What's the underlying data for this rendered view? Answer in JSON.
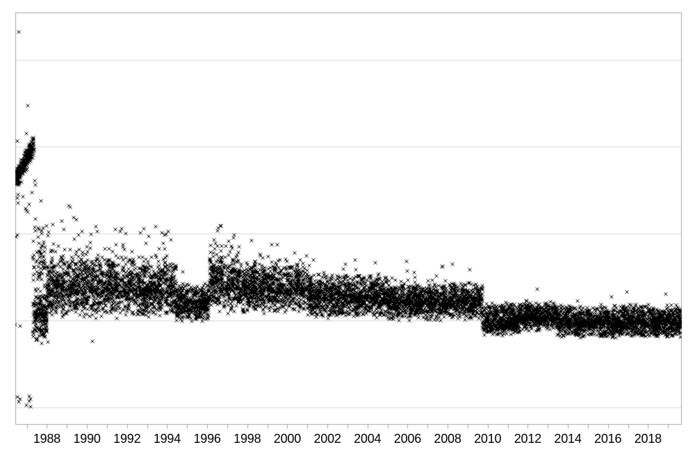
{
  "frame": {
    "background": "#ffffff",
    "border_color": "#a6a6a6",
    "gridline_color": "#d9d9d9",
    "tick_color": "#a6a6a6",
    "label_color": "#000000"
  },
  "chart_data": {
    "type": "scatter",
    "title": "",
    "marker": "x",
    "marker_color": "#000000",
    "marker_size_px": 5,
    "legend": "none",
    "x_axis": {
      "range": [
        1986.44,
        2019.67
      ],
      "tick_years": [
        1987,
        1988,
        1989,
        1990,
        1991,
        1992,
        1993,
        1994,
        1995,
        1996,
        1997,
        1998,
        1999,
        2000,
        2001,
        2002,
        2003,
        2004,
        2005,
        2006,
        2007,
        2008,
        2009,
        2010,
        2011,
        2012,
        2013,
        2014,
        2015,
        2016,
        2017,
        2018,
        2019
      ],
      "label_years": [
        1988,
        1990,
        1992,
        1994,
        1996,
        1998,
        2000,
        2002,
        2004,
        2006,
        2008,
        2010,
        2012,
        2014,
        2016,
        2018
      ],
      "labels": [
        "1988",
        "1990",
        "1992",
        "1994",
        "1996",
        "1998",
        "2000",
        "2002",
        "2004",
        "2006",
        "2008",
        "2010",
        "2012",
        "2014",
        "2016",
        "2018"
      ]
    },
    "y_axis": {
      "range": [
        -0.196,
        4.54
      ],
      "gridlines": [
        0,
        1,
        2,
        3,
        4
      ],
      "labels_visible": false,
      "note": "no tick labels shown; values expressed in gridline units (0 = lowest gridline)"
    },
    "band_segments": [
      {
        "name": "left-rising-cluster",
        "from": 1986.45,
        "to": 1987.35,
        "v_start": 2.63,
        "v_end": 3.01,
        "jitter": 0.13,
        "n": 260
      },
      {
        "name": "left-sparse-strays",
        "from": 1986.45,
        "to": 1987.45,
        "v_min": 2.25,
        "v_max": 2.62,
        "n": 12
      },
      {
        "name": "1987-dense-low-blob",
        "from": 1987.3,
        "to": 1988.0,
        "mode": 1.05,
        "up": 0.26,
        "dn": 0.34,
        "n": 200,
        "tail_p": 0.01,
        "tail_max": 0.3
      },
      {
        "name": "1987-vertical-column",
        "from": 1987.3,
        "to": 1988.1,
        "mode": 1.7,
        "up": 0.55,
        "dn": 0.45,
        "n": 75,
        "tail_p": 0.02,
        "tail_max": 0.3
      },
      {
        "name": "band-1988-1994",
        "from": 1988.0,
        "to": 1994.45,
        "mode": 1.37,
        "up": 0.42,
        "dn": 0.36,
        "n": 1680,
        "tail_p": 0.02,
        "tail_max": 0.28
      },
      {
        "name": "notch-1994-1996",
        "from": 1994.45,
        "to": 1996.1,
        "mode": 1.19,
        "up": 0.25,
        "dn": 0.21,
        "n": 430,
        "tail_p": 0.006,
        "tail_max": 0.2
      },
      {
        "name": "peak-1996-1997",
        "from": 1996.1,
        "to": 1997.6,
        "mode": 1.45,
        "up": 0.4,
        "dn": 0.39,
        "n": 390,
        "tail_p": 0.02,
        "tail_max": 0.3
      },
      {
        "name": "band-1997-2001",
        "from": 1997.6,
        "to": 2001.0,
        "mode": 1.37,
        "up": 0.34,
        "dn": 0.3,
        "n": 885,
        "tail_p": 0.008,
        "tail_max": 0.25
      },
      {
        "name": "band-2001-2005",
        "from": 2001.0,
        "to": 2005.0,
        "mode": 1.27,
        "up": 0.28,
        "dn": 0.25,
        "n": 1040,
        "tail_p": 0.006,
        "tail_max": 0.22
      },
      {
        "name": "band-2005-2009",
        "from": 2005.0,
        "to": 2009.74,
        "mode": 1.21,
        "up": 0.24,
        "dn": 0.22,
        "n": 1235,
        "tail_p": 0.005,
        "tail_max": 0.2
      },
      {
        "name": "step-down-2010-2011",
        "from": 2009.74,
        "to": 2011.6,
        "mode": 0.99,
        "up": 0.24,
        "dn": 0.17,
        "n": 485,
        "tail_p": 0.003,
        "tail_max": 0.15
      },
      {
        "name": "band-2011-2013",
        "from": 2011.6,
        "to": 2013.4,
        "mode": 1.04,
        "up": 0.19,
        "dn": 0.17,
        "n": 470,
        "tail_p": 0.003,
        "tail_max": 0.15
      },
      {
        "name": "band-2013-2019",
        "from": 2013.4,
        "to": 2019.67,
        "mode": 0.98,
        "up": 0.21,
        "dn": 0.19,
        "n": 1630,
        "tail_p": 0.003,
        "tail_max": 0.15
      }
    ],
    "outliers": [
      [
        1986.58,
        4.32
      ],
      [
        1987.03,
        3.47
      ],
      [
        1986.99,
        3.15
      ],
      [
        1986.54,
        3.06
      ],
      [
        1987.13,
        3.01
      ],
      [
        1986.47,
        1.96
      ],
      [
        1986.54,
        1.98
      ],
      [
        1986.96,
        2.29
      ],
      [
        1987.03,
        2.25
      ],
      [
        1987.97,
        2.09
      ],
      [
        1988.28,
        2.1
      ],
      [
        1988.73,
        2.14
      ],
      [
        1989.08,
        2.32
      ],
      [
        1989.15,
        2.3
      ],
      [
        1989.35,
        2.18
      ],
      [
        1989.46,
        2.16
      ],
      [
        1989.74,
        2.02
      ],
      [
        1990.22,
        1.99
      ],
      [
        1990.43,
        2.08
      ],
      [
        1993.42,
        2.08
      ],
      [
        1993.73,
        2.01
      ],
      [
        1993.87,
        1.98
      ],
      [
        1994.04,
        2.02
      ],
      [
        1996.33,
        1.93
      ],
      [
        1996.4,
        1.89
      ],
      [
        1996.54,
        2.06
      ],
      [
        1996.65,
        2.09
      ],
      [
        1997.34,
        1.98
      ],
      [
        2000.36,
        1.78
      ],
      [
        2001.09,
        1.63
      ],
      [
        2001.3,
        1.7
      ],
      [
        2003.56,
        1.51
      ],
      [
        2004.08,
        1.5
      ],
      [
        2005.22,
        1.49
      ],
      [
        2005.95,
        1.68
      ],
      [
        2006.33,
        1.55
      ],
      [
        2006.36,
        1.5
      ],
      [
        2006.38,
        1.44
      ],
      [
        2007.03,
        1.46
      ],
      [
        2007.9,
        1.46
      ],
      [
        2009.18,
        1.42
      ],
      [
        2016.19,
        1.27
      ],
      [
        1986.41,
        0.95
      ],
      [
        1986.65,
        0.94
      ],
      [
        1988.07,
        0.75
      ],
      [
        1990.29,
        0.76
      ],
      [
        1986.54,
        0.12
      ],
      [
        1986.65,
        0.096
      ],
      [
        1986.58,
        0.064
      ],
      [
        1987.13,
        0.128
      ],
      [
        1987.17,
        0.096
      ],
      [
        1987.1,
        0.072
      ],
      [
        1986.99,
        0.024
      ],
      [
        1987.17,
        0.008
      ]
    ]
  }
}
